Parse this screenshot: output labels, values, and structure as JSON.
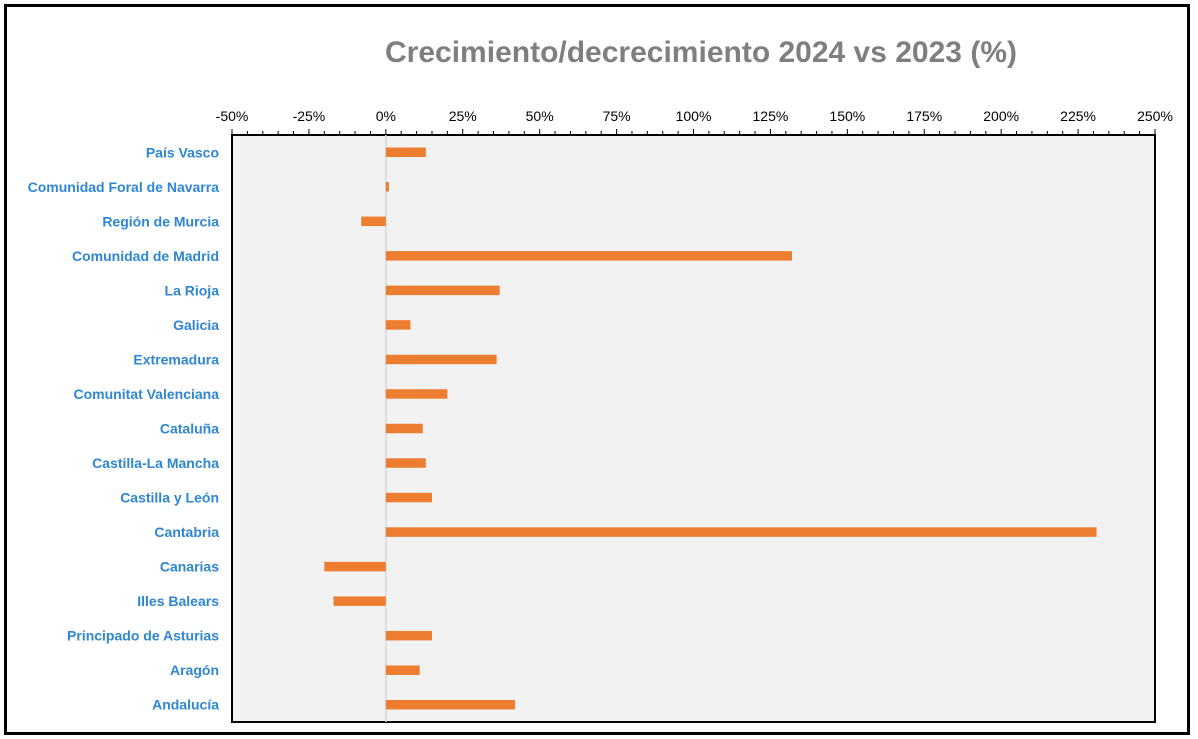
{
  "chart_data": {
    "type": "bar",
    "orientation": "horizontal",
    "title": "Crecimiento/decrecimiento 2024 vs 2023 (%)",
    "xlabel": "",
    "ylabel": "",
    "xlim": [
      -50,
      250
    ],
    "x_axis_position": "top",
    "tick_values": [
      -50,
      -25,
      0,
      25,
      50,
      75,
      100,
      125,
      150,
      175,
      200,
      225,
      250
    ],
    "tick_labels": [
      "-50%",
      "-25%",
      "0%",
      "25%",
      "50%",
      "75%",
      "100%",
      "125%",
      "150%",
      "175%",
      "200%",
      "225%",
      "250%"
    ],
    "grid": false,
    "legend": "none",
    "categories": [
      "País Vasco",
      "Comunidad Foral de Navarra",
      "Región de Murcia",
      "Comunidad de Madrid",
      "La Rioja",
      "Galicia",
      "Extremadura",
      "Comunitat Valenciana",
      "Cataluña",
      "Castilla-La Mancha",
      "Castilla y León",
      "Cantabria",
      "Canarias",
      "Illes Balears",
      "Principado de Asturias",
      "Aragón",
      "Andalucía"
    ],
    "values": [
      13,
      1,
      -8,
      132,
      37,
      8,
      36,
      20,
      12,
      13,
      15,
      231,
      -20,
      -17,
      15,
      11,
      42
    ],
    "colors": {
      "bar": "#ed7d31",
      "plot_background": "#f2f2f2",
      "category_text": "#2e86d4",
      "title_text": "#7f7f7f",
      "zero_line": "#d9d9d9"
    }
  }
}
